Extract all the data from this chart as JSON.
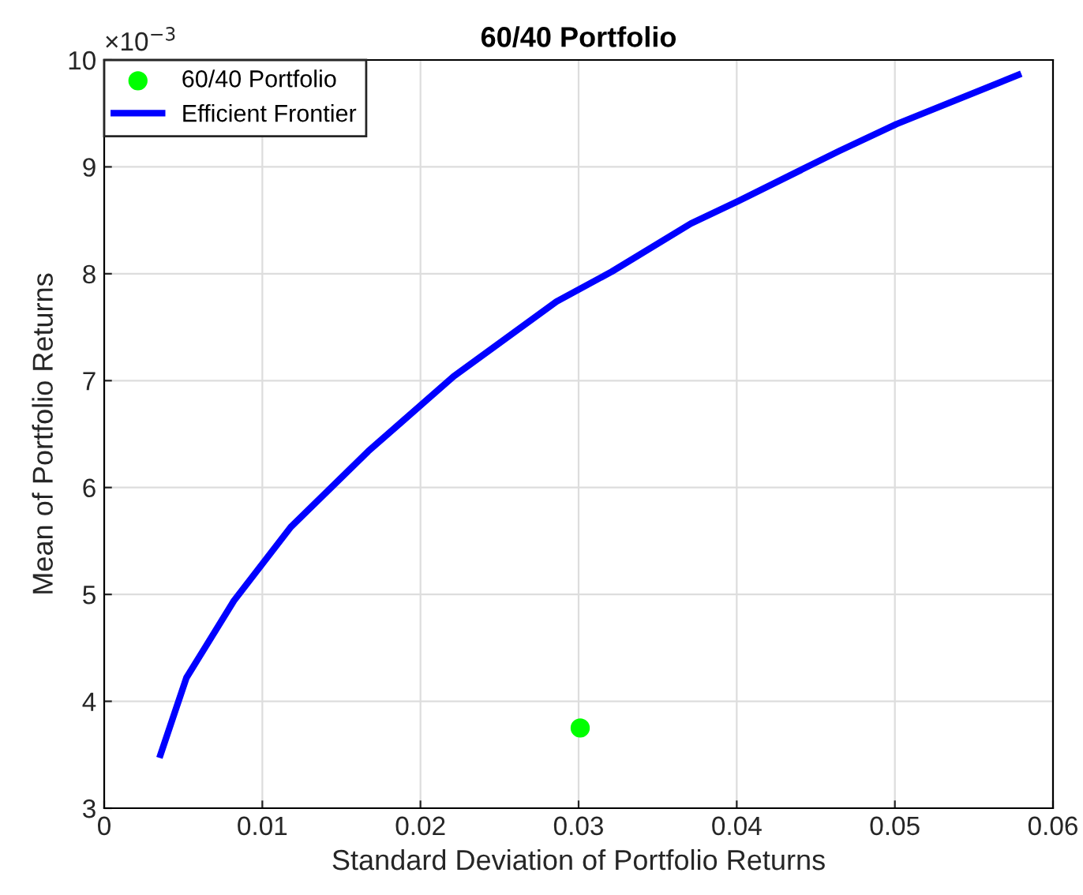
{
  "chart_data": {
    "type": "line",
    "title": "60/40 Portfolio",
    "xlabel": "Standard Deviation of Portfolio Returns",
    "ylabel": "Mean of Portfolio Returns",
    "annotations": [
      "×10$^{−3}$"
    ],
    "series": [
      {
        "name": "60/40 Portfolio",
        "type": "scatter",
        "color": "#00ff00",
        "marker": "circle",
        "x": [
          0.0301
        ],
        "values": [
          3.75
        ]
      },
      {
        "name": "Efficient Frontier",
        "color": "#0000ff",
        "marker": "none",
        "x": [
          0.00356,
          0.0052,
          0.0082,
          0.0118,
          0.0167,
          0.0221,
          0.0286,
          0.0321,
          0.0371,
          0.0401,
          0.0465,
          0.0501,
          0.0578
        ],
        "values": [
          3.5,
          4.22,
          4.94,
          5.63,
          6.34,
          7.04,
          7.74,
          8.02,
          8.47,
          8.68,
          9.15,
          9.4,
          9.86
        ]
      }
    ],
    "xlim": [
      0,
      0.06
    ],
    "xticks": [
      0,
      0.01,
      0.02,
      0.03,
      0.04,
      0.05,
      0.06
    ],
    "ylim": [
      3,
      10
    ],
    "yticks": [
      3,
      4,
      5,
      6,
      7,
      8,
      9,
      10
    ],
    "grid": true,
    "legend": "top left"
  }
}
